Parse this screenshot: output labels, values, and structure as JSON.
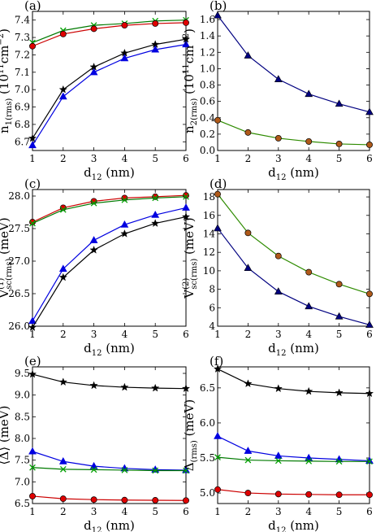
{
  "chart_data": [
    {
      "type": "line",
      "panel_label": "(a)",
      "xlabel": {
        "main": "d",
        "sub": "12",
        "rest": " (nm)"
      },
      "ylabel": {
        "main": "n",
        "sub": "1(rms)",
        "rest": " (10",
        "sup": "11",
        "rest2": "cm",
        "sup2": "−2",
        "end": ")"
      },
      "x": [
        1,
        2,
        3,
        4,
        5,
        6
      ],
      "xlim": [
        1,
        6
      ],
      "ylim": [
        6.65,
        7.45
      ],
      "xticks": [
        "1",
        "2",
        "3",
        "4",
        "5",
        "6"
      ],
      "yticks": [
        "6.7",
        "6.8",
        "6.9",
        "7.0",
        "7.1",
        "7.2",
        "7.3",
        "7.4"
      ],
      "series": [
        {
          "color": "#00a000",
          "line_color": "#007a00",
          "marker": "x",
          "values": [
            7.27,
            7.34,
            7.37,
            7.38,
            7.395,
            7.4
          ]
        },
        {
          "color": "#e00000",
          "line_color": "#cc0000",
          "marker": "circle",
          "values": [
            7.25,
            7.32,
            7.35,
            7.37,
            7.38,
            7.385
          ]
        },
        {
          "color": "#000000",
          "line_color": "#000000",
          "marker": "star",
          "values": [
            6.72,
            7.0,
            7.13,
            7.21,
            7.26,
            7.29
          ]
        },
        {
          "color": "#0000e0",
          "line_color": "#0000e0",
          "marker": "triangle",
          "values": [
            6.68,
            6.96,
            7.1,
            7.18,
            7.23,
            7.26
          ]
        }
      ]
    },
    {
      "type": "line",
      "panel_label": "(b)",
      "xlabel": {
        "main": "d",
        "sub": "12",
        "rest": " (nm)"
      },
      "ylabel": {
        "main": "n",
        "sub": "2(rms)",
        "rest": " (10",
        "sup": "11",
        "rest2": "cm",
        "sup2": "−2",
        "end": ")"
      },
      "x": [
        1,
        2,
        3,
        4,
        5,
        6
      ],
      "xlim": [
        1,
        6
      ],
      "ylim": [
        0,
        1.7
      ],
      "xticks": [
        "1",
        "2",
        "3",
        "4",
        "5",
        "6"
      ],
      "yticks": [
        "0.0",
        "0.2",
        "0.4",
        "0.6",
        "0.8",
        "1.0",
        "1.2",
        "1.4",
        "1.6"
      ],
      "series": [
        {
          "color": "#000000",
          "line_color": "#000080",
          "marker": "triangle",
          "marker_fill": "#000080",
          "values": [
            1.65,
            1.16,
            0.87,
            0.69,
            0.57,
            0.47
          ]
        },
        {
          "color": "#000000",
          "line_color": "#2e8b00",
          "marker": "circle",
          "marker_fill": "#b05a1a",
          "values": [
            0.37,
            0.22,
            0.15,
            0.11,
            0.08,
            0.07
          ]
        }
      ]
    },
    {
      "type": "line",
      "panel_label": "(c)",
      "xlabel": {
        "main": "d",
        "sub": "12",
        "rest": " (nm)"
      },
      "ylabel": {
        "main": "V",
        "sub": "sc(rms)",
        "sup": "(1)",
        "rest": " (meV)"
      },
      "x": [
        1,
        2,
        3,
        4,
        5,
        6
      ],
      "xlim": [
        1,
        6
      ],
      "ylim": [
        26.0,
        28.1
      ],
      "xticks": [
        "1",
        "2",
        "3",
        "4",
        "5",
        "6"
      ],
      "yticks": [
        "26.0",
        "26.5",
        "27.0",
        "27.5",
        "28.0"
      ],
      "series": [
        {
          "color": "#e00000",
          "line_color": "#cc0000",
          "marker": "circle",
          "values": [
            27.6,
            27.82,
            27.92,
            27.97,
            27.99,
            28.01
          ]
        },
        {
          "color": "#00a000",
          "line_color": "#007a00",
          "marker": "x",
          "values": [
            27.58,
            27.79,
            27.89,
            27.94,
            27.97,
            27.99
          ]
        },
        {
          "color": "#0000e0",
          "line_color": "#0000e0",
          "marker": "triangle",
          "values": [
            26.08,
            26.88,
            27.32,
            27.56,
            27.71,
            27.82
          ]
        },
        {
          "color": "#000000",
          "line_color": "#000000",
          "marker": "star",
          "values": [
            25.98,
            26.75,
            27.17,
            27.42,
            27.58,
            27.68
          ]
        }
      ]
    },
    {
      "type": "line",
      "panel_label": "(d)",
      "xlabel": {
        "main": "d",
        "sub": "12",
        "rest": " (nm)"
      },
      "ylabel": {
        "main": "V",
        "sub": "sc(rms)",
        "sup": "(2)",
        "rest": " (meV)"
      },
      "x": [
        1,
        2,
        3,
        4,
        5,
        6
      ],
      "xlim": [
        1,
        6
      ],
      "ylim": [
        4,
        18.8
      ],
      "xticks": [
        "1",
        "2",
        "3",
        "4",
        "5",
        "6"
      ],
      "yticks": [
        "4",
        "6",
        "8",
        "10",
        "12",
        "14",
        "16",
        "18"
      ],
      "series": [
        {
          "color": "#000000",
          "line_color": "#2e8b00",
          "marker": "circle",
          "marker_fill": "#b05a1a",
          "values": [
            18.3,
            14.1,
            11.6,
            9.85,
            8.55,
            7.5
          ]
        },
        {
          "color": "#000000",
          "line_color": "#000080",
          "marker": "triangle",
          "marker_fill": "#000080",
          "values": [
            14.6,
            10.3,
            7.75,
            6.15,
            5.05,
            4.15
          ]
        }
      ]
    },
    {
      "type": "line",
      "panel_label": "(e)",
      "xlabel": {
        "main": "d",
        "sub": "12",
        "rest": " (nm)"
      },
      "ylabel": {
        "main": "⟨Δ⟩",
        "rest": " (meV)"
      },
      "x": [
        1,
        2,
        3,
        4,
        5,
        6
      ],
      "xlim": [
        1,
        6
      ],
      "ylim": [
        6.5,
        9.65
      ],
      "xticks": [
        "1",
        "2",
        "3",
        "4",
        "5",
        "6"
      ],
      "yticks": [
        "6.5",
        "7.0",
        "7.5",
        "8.0",
        "8.5",
        "9.0",
        "9.5"
      ],
      "series": [
        {
          "color": "#000000",
          "line_color": "#000000",
          "marker": "star",
          "values": [
            9.48,
            9.3,
            9.22,
            9.18,
            9.16,
            9.15
          ]
        },
        {
          "color": "#0000e0",
          "line_color": "#0000e0",
          "marker": "triangle",
          "values": [
            7.7,
            7.47,
            7.36,
            7.31,
            7.28,
            7.27
          ]
        },
        {
          "color": "#00a000",
          "line_color": "#007a00",
          "marker": "x",
          "values": [
            7.33,
            7.29,
            7.28,
            7.27,
            7.26,
            7.26
          ]
        },
        {
          "color": "#e00000",
          "line_color": "#cc0000",
          "marker": "circle",
          "values": [
            6.67,
            6.61,
            6.59,
            6.58,
            6.575,
            6.57
          ]
        }
      ]
    },
    {
      "type": "line",
      "panel_label": "(f)",
      "xlabel": {
        "main": "d",
        "sub": "12",
        "rest": " (nm)"
      },
      "ylabel": {
        "main": "Δ",
        "sub": "(rms)",
        "rest": " (meV)"
      },
      "x": [
        1,
        2,
        3,
        4,
        5,
        6
      ],
      "xlim": [
        1,
        6
      ],
      "ylim": [
        4.85,
        6.8
      ],
      "xticks": [
        "1",
        "2",
        "3",
        "4",
        "5",
        "6"
      ],
      "yticks": [
        "5.0",
        "5.5",
        "6.0",
        "6.5"
      ],
      "series": [
        {
          "color": "#000000",
          "line_color": "#000000",
          "marker": "star",
          "values": [
            6.77,
            6.56,
            6.49,
            6.45,
            6.43,
            6.42
          ]
        },
        {
          "color": "#0000e0",
          "line_color": "#0000e0",
          "marker": "triangle",
          "values": [
            5.81,
            5.6,
            5.53,
            5.5,
            5.48,
            5.46
          ]
        },
        {
          "color": "#00a000",
          "line_color": "#007a00",
          "marker": "x",
          "values": [
            5.51,
            5.47,
            5.46,
            5.455,
            5.45,
            5.45
          ]
        },
        {
          "color": "#e00000",
          "line_color": "#cc0000",
          "marker": "circle",
          "values": [
            5.05,
            5.0,
            4.985,
            4.98,
            4.975,
            4.975
          ]
        }
      ]
    }
  ]
}
